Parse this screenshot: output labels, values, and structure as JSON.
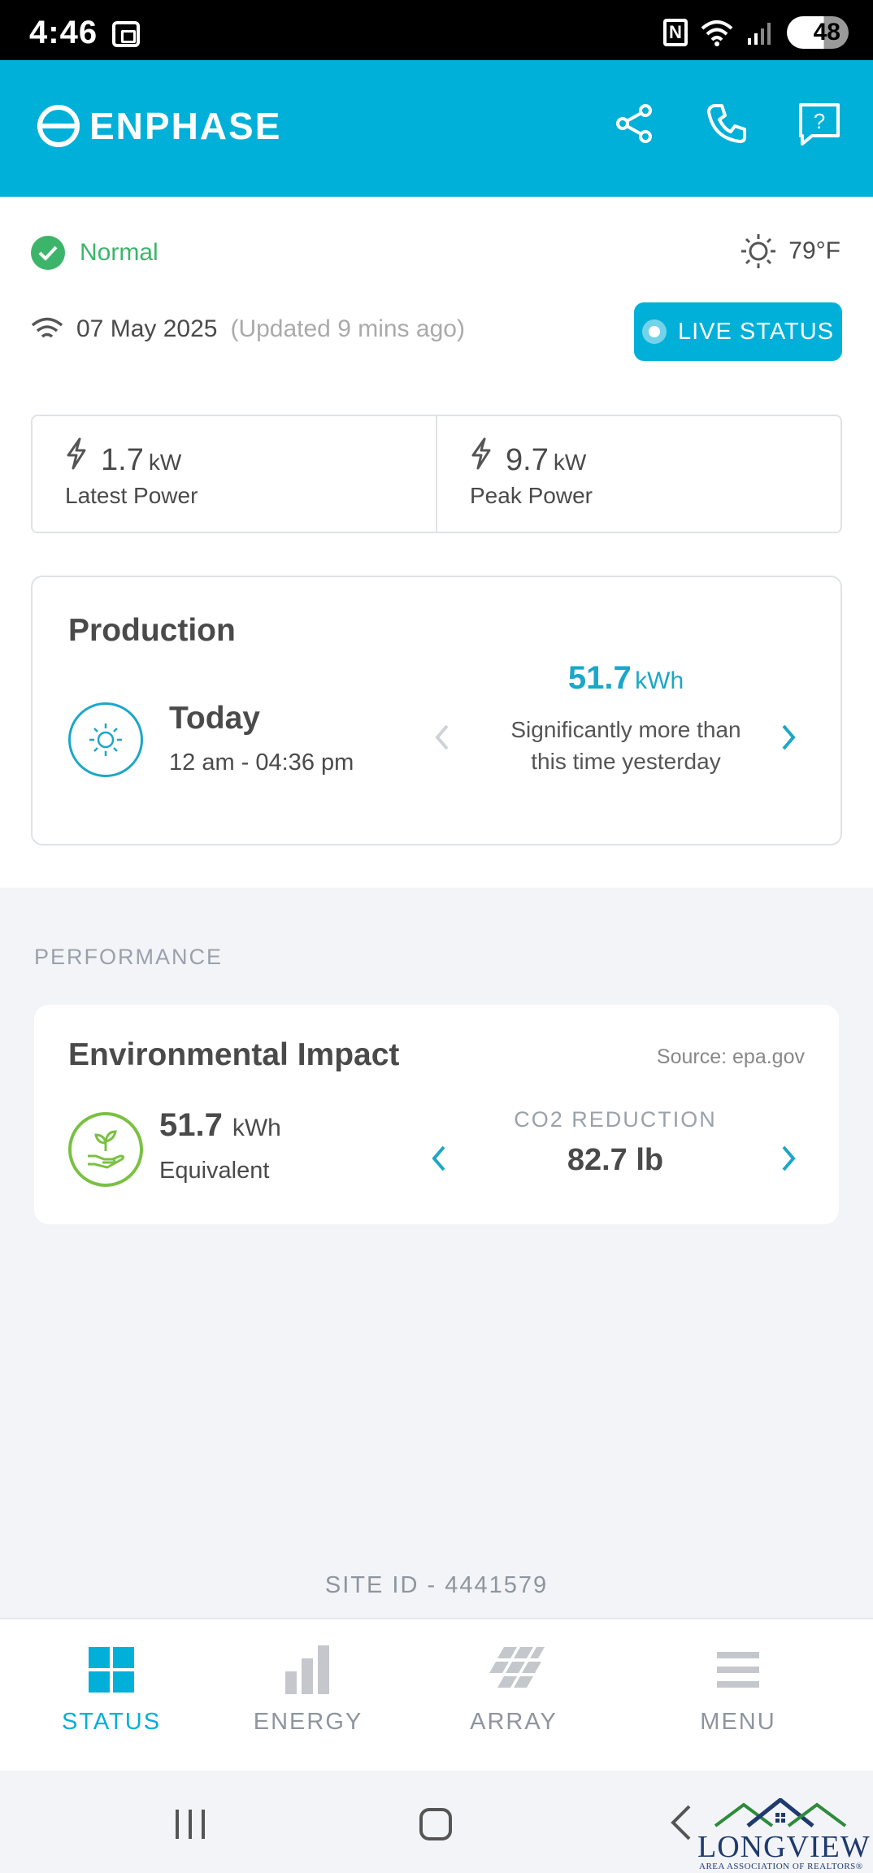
{
  "status_bar": {
    "time": "4:46",
    "battery": "48",
    "nfc": "N"
  },
  "header": {
    "brand": "ENPHASE"
  },
  "system": {
    "status": "Normal",
    "temperature": "79°F",
    "date": "07 May 2025",
    "updated": "(Updated 9 mins ago)",
    "live_button": "LIVE STATUS"
  },
  "power": {
    "latest": {
      "value": "1.7",
      "unit": "kW",
      "label": "Latest Power"
    },
    "peak": {
      "value": "9.7",
      "unit": "kW",
      "label": "Peak Power"
    }
  },
  "production": {
    "title": "Production",
    "period": "Today",
    "time_range": "12 am - 04:36 pm",
    "value": "51.7",
    "unit": "kWh",
    "note": "Significantly more than this time yesterday"
  },
  "performance": {
    "section_label": "PERFORMANCE",
    "card_title": "Environmental Impact",
    "source": "Source: epa.gov",
    "value": "51.7",
    "unit": "kWh",
    "equivalent_label": "Equivalent",
    "metric_label": "CO2 REDUCTION",
    "metric_value": "82.7 lb"
  },
  "site": {
    "id_text": "SITE ID - 4441579"
  },
  "nav": {
    "items": [
      {
        "label": "STATUS"
      },
      {
        "label": "ENERGY"
      },
      {
        "label": "ARRAY"
      },
      {
        "label": "MENU"
      }
    ]
  },
  "watermark": {
    "text": "LONGVIEW",
    "sub": "AREA ASSOCIATION OF REALTORS®"
  },
  "colors": {
    "brand": "#00b0d8",
    "ok": "#3cb56a",
    "leaf": "#7ac143",
    "accent": "#1aa7c9"
  }
}
